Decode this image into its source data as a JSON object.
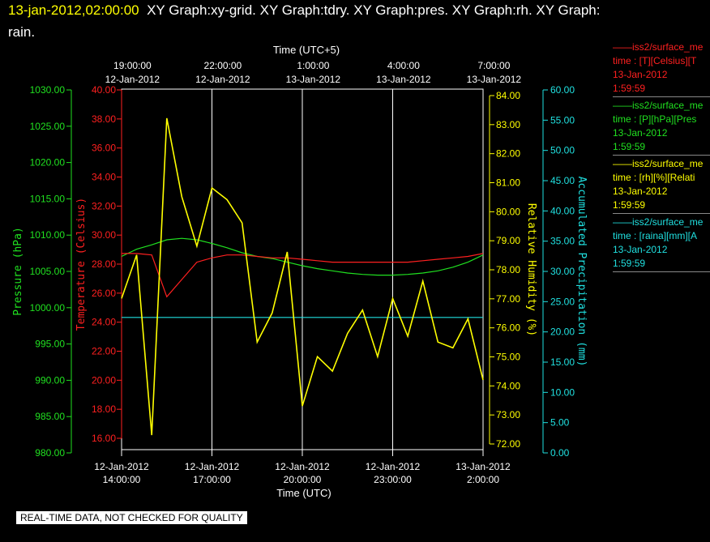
{
  "header": {
    "timestamp": "13-jan-2012,02:00:00",
    "title_rest": "XY Graph:xy-grid.  XY Graph:tdry.  XY Graph:pres.  XY Graph:rh.  XY Graph:",
    "title_line2": "rain."
  },
  "footer": {
    "qc_notice": "REAL-TIME DATA, NOT CHECKED FOR QUALITY"
  },
  "colors": {
    "temperature": "#ff2020",
    "pressure": "#20e020",
    "humidity": "#ffff00",
    "precip": "#20e0e0",
    "grid": "#ffffff",
    "background": "#000000"
  },
  "legend": [
    {
      "line1": "iss2/surface_me",
      "line2": "time : [T][Celsius][T",
      "line3": "13-Jan-2012",
      "line4": "1:59:59",
      "color": "#ff2020"
    },
    {
      "line1": "iss2/surface_me",
      "line2": "time : [P][hPa][Pres",
      "line3": "13-Jan-2012",
      "line4": "1:59:59",
      "color": "#20e020"
    },
    {
      "line1": "iss2/surface_me",
      "line2": "time : [rh][%][Relati",
      "line3": "13-Jan-2012",
      "line4": "1:59:59",
      "color": "#ffff00"
    },
    {
      "line1": "iss2/surface_me",
      "line2": "time : [raina][mm][A",
      "line3": "13-Jan-2012",
      "line4": "1:59:59",
      "color": "#20e0e0"
    }
  ],
  "chart_data": {
    "type": "line",
    "top_axis": {
      "label": "Time (UTC+5)",
      "ticks": [
        {
          "time": "19:00:00",
          "date": "12-Jan-2012"
        },
        {
          "time": "22:00:00",
          "date": "12-Jan-2012"
        },
        {
          "time": "1:00:00",
          "date": "13-Jan-2012"
        },
        {
          "time": "4:00:00",
          "date": "13-Jan-2012"
        },
        {
          "time": "7:00:00",
          "date": "13-Jan-2012"
        }
      ]
    },
    "bottom_axis": {
      "label": "Time (UTC)",
      "range": [
        "2012-01-12 14:00",
        "2012-01-13 02:00"
      ],
      "ticks": [
        {
          "date": "12-Jan-2012",
          "time": "14:00:00"
        },
        {
          "date": "12-Jan-2012",
          "time": "17:00:00"
        },
        {
          "date": "12-Jan-2012",
          "time": "20:00:00"
        },
        {
          "date": "12-Jan-2012",
          "time": "23:00:00"
        },
        {
          "date": "13-Jan-2012",
          "time": "2:00:00"
        }
      ]
    },
    "grid": true,
    "x_hours": [
      14,
      14.5,
      15,
      15.5,
      16,
      16.5,
      17,
      17.5,
      18,
      18.5,
      19,
      19.5,
      20,
      20.5,
      21,
      21.5,
      22,
      22.5,
      23,
      23.5,
      24,
      24.5,
      25,
      25.5,
      26
    ],
    "axes": [
      {
        "key": "pressure",
        "label": "Pressure (hPa)",
        "range": [
          980,
          1030
        ],
        "ticks": [
          "1030.00",
          "1025.00",
          "1020.00",
          "1015.00",
          "1010.00",
          "1005.00",
          "1000.00",
          "995.00",
          "990.00",
          "985.00",
          "980.00"
        ]
      },
      {
        "key": "temperature",
        "label": "Temperature (Celsius)",
        "range": [
          15,
          40
        ],
        "ticks": [
          "40.00",
          "38.00",
          "36.00",
          "34.00",
          "32.00",
          "30.00",
          "28.00",
          "26.00",
          "24.00",
          "22.00",
          "20.00",
          "18.00",
          "16.00"
        ]
      },
      {
        "key": "humidity",
        "label": "Relative Humidity (%)",
        "range": [
          71.8,
          84.2
        ],
        "ticks": [
          "84.00",
          "83.00",
          "82.00",
          "81.00",
          "80.00",
          "79.00",
          "78.00",
          "77.00",
          "76.00",
          "75.00",
          "74.00",
          "73.00",
          "72.00"
        ]
      },
      {
        "key": "precip",
        "label": "Accumulated Precipitation (mm)",
        "range": [
          0,
          60
        ],
        "ticks": [
          "60.00",
          "55.00",
          "50.00",
          "45.00",
          "40.00",
          "35.00",
          "30.00",
          "25.00",
          "20.00",
          "15.00",
          "10.00",
          "5.00",
          "0.00"
        ]
      }
    ],
    "series": [
      {
        "key": "temperature",
        "values": [
          28.6,
          28.6,
          28.5,
          25.6,
          26.8,
          28.0,
          28.3,
          28.5,
          28.5,
          28.4,
          28.3,
          28.3,
          28.2,
          28.1,
          28.0,
          28.0,
          28.0,
          28.0,
          28.0,
          28.0,
          28.1,
          28.2,
          28.3,
          28.4,
          28.6
        ]
      },
      {
        "key": "pressure",
        "values": [
          1006.8,
          1007.8,
          1008.4,
          1009.1,
          1009.3,
          1009.1,
          1008.6,
          1008.0,
          1007.3,
          1006.8,
          1006.5,
          1006.0,
          1005.5,
          1005.1,
          1004.8,
          1004.5,
          1004.3,
          1004.2,
          1004.2,
          1004.3,
          1004.5,
          1004.8,
          1005.3,
          1006.0,
          1007.0
        ]
      },
      {
        "key": "humidity",
        "values": [
          77.0,
          78.5,
          72.3,
          83.2,
          80.5,
          78.8,
          80.8,
          80.4,
          79.6,
          75.5,
          76.5,
          78.6,
          73.3,
          75.0,
          74.5,
          75.8,
          76.6,
          75.0,
          77.0,
          75.7,
          77.6,
          75.5,
          75.3,
          76.3,
          74.2
        ]
      },
      {
        "key": "precip",
        "values": [
          22.0,
          22.0,
          22.0,
          22.0,
          22.0,
          22.0,
          22.0,
          22.0,
          22.0,
          22.0,
          22.0,
          22.0,
          22.0,
          22.0,
          22.0,
          22.0,
          22.0,
          22.0,
          22.0,
          22.0,
          22.0,
          22.0,
          22.0,
          22.0,
          22.0
        ]
      }
    ]
  }
}
